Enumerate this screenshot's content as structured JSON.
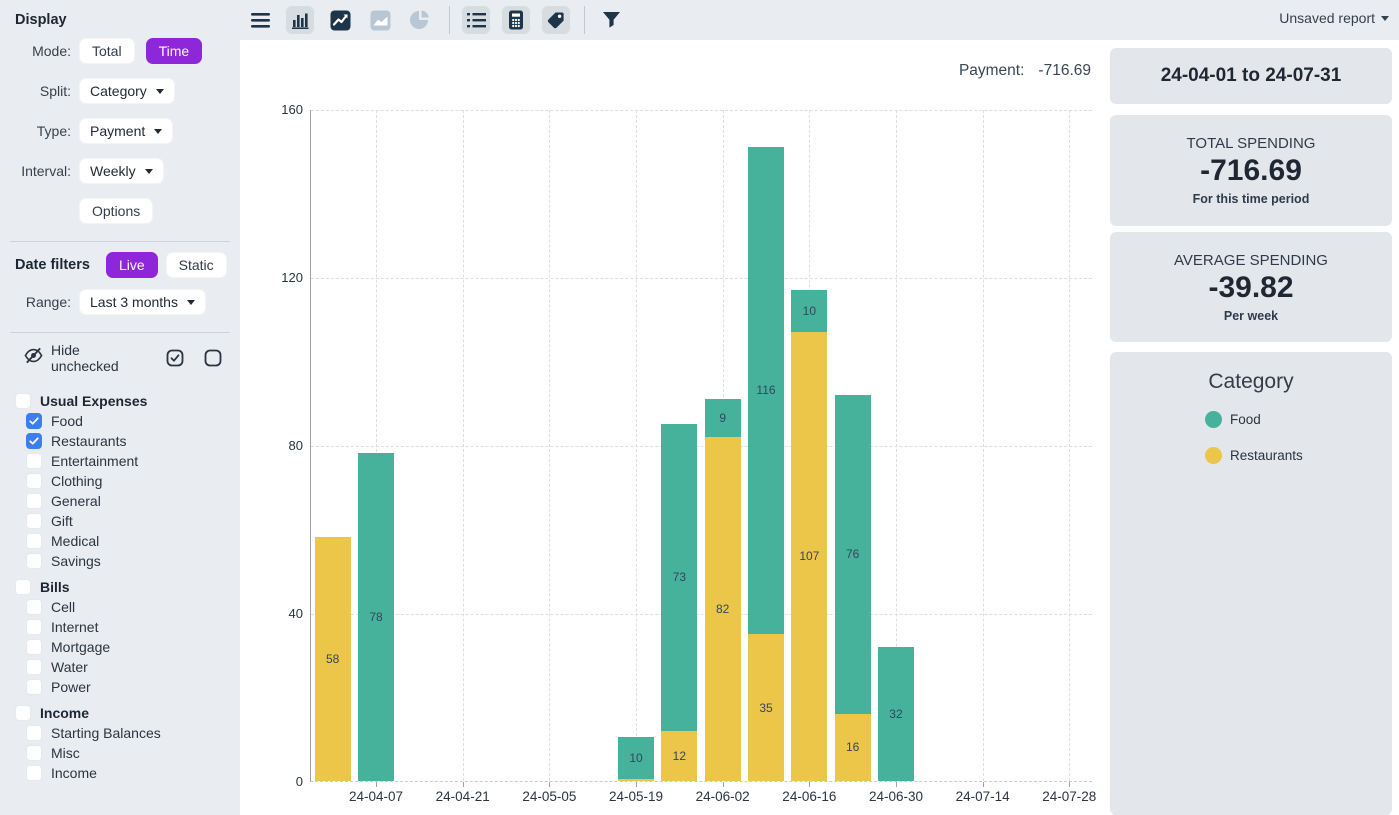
{
  "report_menu": {
    "label": "Unsaved report"
  },
  "toolbar": {
    "icons": [
      "menu",
      "bar-chart",
      "line-chart",
      "area-chart",
      "pie-chart",
      "list",
      "calculator",
      "tag",
      "filter"
    ]
  },
  "sidebar": {
    "display": {
      "heading": "Display",
      "mode_label": "Mode:",
      "mode_options": [
        {
          "label": "Total",
          "selected": false
        },
        {
          "label": "Time",
          "selected": true
        }
      ],
      "split_label": "Split:",
      "split_value": "Category",
      "type_label": "Type:",
      "type_value": "Payment",
      "interval_label": "Interval:",
      "interval_value": "Weekly",
      "options_button": "Options"
    },
    "date_filters": {
      "heading": "Date filters",
      "options": [
        {
          "label": "Live",
          "selected": true
        },
        {
          "label": "Static",
          "selected": false
        }
      ],
      "range_label": "Range:",
      "range_value": "Last 3 months"
    },
    "hide_unchecked_label": "Hide unchecked",
    "groups": [
      {
        "label": "Usual Expenses",
        "checked": false,
        "items": [
          {
            "label": "Food",
            "checked": true
          },
          {
            "label": "Restaurants",
            "checked": true
          },
          {
            "label": "Entertainment",
            "checked": false
          },
          {
            "label": "Clothing",
            "checked": false
          },
          {
            "label": "General",
            "checked": false
          },
          {
            "label": "Gift",
            "checked": false
          },
          {
            "label": "Medical",
            "checked": false
          },
          {
            "label": "Savings",
            "checked": false
          }
        ]
      },
      {
        "label": "Bills",
        "checked": false,
        "items": [
          {
            "label": "Cell",
            "checked": false
          },
          {
            "label": "Internet",
            "checked": false
          },
          {
            "label": "Mortgage",
            "checked": false
          },
          {
            "label": "Water",
            "checked": false
          },
          {
            "label": "Power",
            "checked": false
          }
        ]
      },
      {
        "label": "Income",
        "checked": false,
        "items": [
          {
            "label": "Starting Balances",
            "checked": false
          },
          {
            "label": "Misc",
            "checked": false
          },
          {
            "label": "Income",
            "checked": false
          }
        ]
      }
    ]
  },
  "chart_header": {
    "label": "Payment:",
    "value": "-716.69"
  },
  "chart_data": {
    "type": "bar",
    "stacked": true,
    "interval": "Weekly",
    "title": "Payment: -716.69",
    "x": [
      "24-03-31",
      "24-04-07",
      "24-04-14",
      "24-04-21",
      "24-04-28",
      "24-05-05",
      "24-05-12",
      "24-05-19",
      "24-05-26",
      "24-06-02",
      "24-06-09",
      "24-06-16",
      "24-06-23",
      "24-06-30",
      "24-07-07",
      "24-07-14",
      "24-07-21",
      "24-07-28"
    ],
    "x_tick_labels": [
      "24-04-07",
      "24-04-21",
      "24-05-05",
      "24-05-19",
      "24-06-02",
      "24-06-16",
      "24-06-30",
      "24-07-14",
      "24-07-28"
    ],
    "series": [
      {
        "name": "Restaurants",
        "color": "#ecc649",
        "values": [
          58,
          0,
          0,
          0,
          0,
          0,
          0,
          0.4,
          12,
          82,
          35,
          107,
          16,
          0,
          0,
          0,
          0,
          0
        ]
      },
      {
        "name": "Food",
        "color": "#47b29c",
        "values": [
          0,
          78,
          0,
          0,
          0,
          0,
          0,
          10,
          73,
          9,
          116,
          10,
          76,
          32,
          0,
          0,
          0,
          0
        ]
      }
    ],
    "ylim": [
      0,
      160
    ],
    "yticks": [
      0,
      40,
      80,
      120,
      160
    ],
    "label_min_value": 5,
    "grid": true,
    "legend_position": "right-panel"
  },
  "summary": {
    "date_range": "24-04-01 to 24-07-31",
    "total_spending": {
      "title": "TOTAL SPENDING",
      "value": "-716.69",
      "subtitle": "For this time period"
    },
    "average_spending": {
      "title": "AVERAGE SPENDING",
      "value": "-39.82",
      "subtitle": "Per week"
    },
    "legend": {
      "title": "Category",
      "items": [
        {
          "label": "Food",
          "color": "#47b29c"
        },
        {
          "label": "Restaurants",
          "color": "#ecc649"
        }
      ]
    }
  },
  "colors": {
    "accent_purple": "#8e26d9",
    "food_teal": "#47b29c",
    "restaurants_yellow": "#ecc649",
    "checkbox_blue": "#3b7ef0",
    "icon_navy": "#1d3449",
    "icon_muted": "#b9c6d3"
  }
}
